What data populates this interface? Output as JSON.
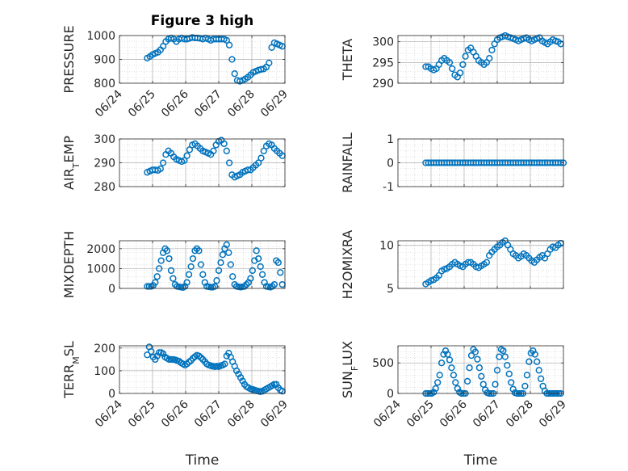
{
  "chart_data": [
    {
      "type": "scatter",
      "title": "Figure 3 high",
      "ylabel": "PRESSURE",
      "ylim": [
        800,
        1000
      ],
      "yticks": [
        "800",
        "900",
        "1000"
      ],
      "xlim": [
        0,
        5
      ],
      "xticks": [
        "06/24",
        "06/25",
        "06/26",
        "06/27",
        "06/28",
        "06/29"
      ],
      "xlabel": "",
      "grid": true,
      "series": [
        {
          "x": [
            0.84,
            0.92,
            1.0,
            1.08,
            1.16,
            1.24,
            1.32,
            1.4,
            1.48,
            1.56,
            1.64,
            1.72,
            1.8,
            1.88,
            1.96,
            2.04,
            2.12,
            2.2,
            2.28,
            2.36,
            2.44,
            2.52,
            2.6,
            2.68,
            2.76,
            2.84,
            2.92,
            3.0,
            3.08,
            3.16,
            3.24,
            3.32,
            3.4,
            3.48,
            3.56,
            3.64,
            3.72,
            3.8,
            3.88,
            3.96,
            4.04,
            4.12,
            4.2,
            4.28,
            4.36,
            4.44,
            4.52,
            4.6,
            4.68,
            4.76,
            4.84,
            4.92
          ],
          "y": [
            905,
            912,
            920,
            925,
            930,
            940,
            955,
            975,
            985,
            990,
            985,
            975,
            985,
            990,
            985,
            985,
            988,
            992,
            990,
            990,
            988,
            985,
            990,
            985,
            980,
            985,
            985,
            985,
            985,
            985,
            980,
            960,
            900,
            840,
            812,
            808,
            812,
            818,
            825,
            835,
            845,
            850,
            855,
            858,
            860,
            868,
            885,
            950,
            970,
            965,
            960,
            955
          ]
        }
      ]
    },
    {
      "type": "scatter",
      "ylabel": "THETA",
      "ylim": [
        290,
        301.5
      ],
      "yticks": [
        "290",
        "295",
        "300"
      ],
      "xlim": [
        0,
        5
      ],
      "grid": true,
      "series": [
        {
          "x": [
            0.84,
            0.92,
            1.0,
            1.08,
            1.16,
            1.24,
            1.32,
            1.4,
            1.48,
            1.56,
            1.64,
            1.72,
            1.8,
            1.88,
            1.96,
            2.04,
            2.12,
            2.2,
            2.28,
            2.36,
            2.44,
            2.52,
            2.6,
            2.68,
            2.76,
            2.84,
            2.92,
            3.0,
            3.08,
            3.16,
            3.24,
            3.32,
            3.4,
            3.48,
            3.56,
            3.64,
            3.72,
            3.8,
            3.88,
            3.96,
            4.04,
            4.12,
            4.2,
            4.28,
            4.36,
            4.44,
            4.52,
            4.6,
            4.68,
            4.76,
            4.84,
            4.92
          ],
          "y": [
            294,
            294,
            293.5,
            293.2,
            293.5,
            294.5,
            295.5,
            296,
            295.5,
            295,
            293.5,
            292,
            291.5,
            292.5,
            294.5,
            296.5,
            298,
            298.5,
            297.5,
            296.5,
            295.5,
            295,
            294.5,
            295,
            296,
            298,
            299.5,
            300.5,
            301,
            301.2,
            301.5,
            301.2,
            301,
            300.8,
            300.5,
            300.2,
            300.5,
            300.8,
            301,
            300.5,
            300.2,
            300.5,
            300.8,
            301,
            300.2,
            299.8,
            299.5,
            300,
            300.5,
            300.2,
            300,
            299.5
          ]
        }
      ]
    },
    {
      "type": "scatter",
      "ylabel": "AIR_TEMP",
      "ylim": [
        280,
        300
      ],
      "yticks": [
        "280",
        "290",
        "300"
      ],
      "xlim": [
        0,
        5
      ],
      "grid": true,
      "series": [
        {
          "x": [
            0.84,
            0.92,
            1.0,
            1.08,
            1.16,
            1.24,
            1.32,
            1.4,
            1.48,
            1.56,
            1.64,
            1.72,
            1.8,
            1.88,
            1.96,
            2.04,
            2.12,
            2.2,
            2.28,
            2.36,
            2.44,
            2.52,
            2.6,
            2.68,
            2.76,
            2.84,
            2.92,
            3.0,
            3.08,
            3.16,
            3.24,
            3.32,
            3.4,
            3.48,
            3.56,
            3.64,
            3.72,
            3.8,
            3.88,
            3.96,
            4.04,
            4.12,
            4.2,
            4.28,
            4.36,
            4.44,
            4.52,
            4.6,
            4.68,
            4.76,
            4.84,
            4.92
          ],
          "y": [
            286,
            286.5,
            287,
            287,
            286.8,
            287.5,
            290,
            293.5,
            295,
            294,
            292.5,
            291.5,
            291,
            290.5,
            291,
            293,
            295.5,
            297.5,
            298,
            297,
            296,
            295,
            294.5,
            294,
            293.5,
            295,
            297.5,
            299,
            299.5,
            298,
            295,
            290,
            285,
            284,
            284.5,
            285,
            286,
            286.5,
            287,
            287,
            288,
            289,
            290,
            292,
            295,
            297,
            298,
            297.5,
            296,
            295,
            294,
            293
          ]
        }
      ]
    },
    {
      "type": "scatter",
      "ylabel": "RAINFALL",
      "ylim": [
        -1,
        1
      ],
      "yticks": [
        "-1",
        "0",
        "1"
      ],
      "xlim": [
        0,
        5
      ],
      "grid": true,
      "series": [
        {
          "x": [
            0.84,
            0.92,
            1.0,
            1.08,
            1.16,
            1.24,
            1.32,
            1.4,
            1.48,
            1.56,
            1.64,
            1.72,
            1.8,
            1.88,
            1.96,
            2.04,
            2.12,
            2.2,
            2.28,
            2.36,
            2.44,
            2.52,
            2.6,
            2.68,
            2.76,
            2.84,
            2.92,
            3.0,
            3.08,
            3.16,
            3.24,
            3.32,
            3.4,
            3.48,
            3.56,
            3.64,
            3.72,
            3.8,
            3.88,
            3.96,
            4.04,
            4.12,
            4.2,
            4.28,
            4.36,
            4.44,
            4.52,
            4.6,
            4.68,
            4.76,
            4.84,
            4.92,
            5.0
          ],
          "y": [
            0,
            0,
            0,
            0,
            0,
            0,
            0,
            0,
            0,
            0,
            0,
            0,
            0,
            0,
            0,
            0,
            0,
            0,
            0,
            0,
            0,
            0,
            0,
            0,
            0,
            0,
            0,
            0,
            0,
            0,
            0,
            0,
            0,
            0,
            0,
            0,
            0,
            0,
            0,
            0,
            0,
            0,
            0,
            0,
            0,
            0,
            0,
            0,
            0,
            0,
            0,
            0,
            0
          ]
        }
      ]
    },
    {
      "type": "scatter",
      "ylabel": "MIXDEPTH",
      "ylim": [
        0,
        2400
      ],
      "yticks": [
        "0",
        "1000",
        "2000"
      ],
      "xlim": [
        0,
        5
      ],
      "grid": true,
      "series": [
        {
          "x": [
            0.84,
            0.9,
            0.96,
            1.02,
            1.08,
            1.14,
            1.2,
            1.26,
            1.32,
            1.38,
            1.44,
            1.5,
            1.56,
            1.62,
            1.68,
            1.74,
            1.8,
            1.86,
            1.92,
            1.98,
            2.04,
            2.1,
            2.16,
            2.22,
            2.28,
            2.34,
            2.4,
            2.46,
            2.52,
            2.58,
            2.64,
            2.7,
            2.76,
            2.82,
            2.88,
            2.94,
            3.0,
            3.06,
            3.12,
            3.18,
            3.24,
            3.3,
            3.36,
            3.42,
            3.48,
            3.54,
            3.6,
            3.66,
            3.72,
            3.78,
            3.84,
            3.9,
            3.96,
            4.02,
            4.08,
            4.14,
            4.2,
            4.26,
            4.32,
            4.38,
            4.44,
            4.5,
            4.56,
            4.62,
            4.68,
            4.74,
            4.8,
            4.86,
            4.92
          ],
          "y": [
            100,
            100,
            100,
            150,
            300,
            600,
            1000,
            1400,
            1800,
            2000,
            1900,
            1500,
            900,
            500,
            200,
            100,
            80,
            60,
            50,
            100,
            300,
            700,
            1100,
            1500,
            1900,
            2000,
            1900,
            1200,
            700,
            300,
            100,
            80,
            60,
            60,
            100,
            400,
            900,
            1300,
            1700,
            2000,
            2200,
            1800,
            1200,
            600,
            200,
            100,
            80,
            60,
            80,
            100,
            200,
            300,
            500,
            900,
            1400,
            1900,
            1500,
            1100,
            700,
            300,
            100,
            80,
            60,
            100,
            200,
            1400,
            1300,
            800,
            200
          ]
        }
      ]
    },
    {
      "type": "scatter",
      "ylabel": "H2OMIXRA",
      "ylim": [
        5,
        10.5
      ],
      "yticks": [
        "5",
        "10"
      ],
      "xlim": [
        0,
        5
      ],
      "grid": true,
      "series": [
        {
          "x": [
            0.84,
            0.92,
            1.0,
            1.08,
            1.16,
            1.24,
            1.32,
            1.4,
            1.48,
            1.56,
            1.64,
            1.72,
            1.8,
            1.88,
            1.96,
            2.04,
            2.12,
            2.2,
            2.28,
            2.36,
            2.44,
            2.52,
            2.6,
            2.68,
            2.76,
            2.84,
            2.92,
            3.0,
            3.08,
            3.16,
            3.24,
            3.32,
            3.4,
            3.48,
            3.56,
            3.64,
            3.72,
            3.8,
            3.88,
            3.96,
            4.04,
            4.12,
            4.2,
            4.28,
            4.36,
            4.44,
            4.52,
            4.6,
            4.68,
            4.76,
            4.84,
            4.92
          ],
          "y": [
            5.5,
            5.7,
            5.9,
            6.0,
            6.2,
            6.5,
            7.0,
            7.2,
            7.3,
            7.5,
            7.8,
            8.0,
            7.8,
            7.6,
            7.5,
            7.8,
            8.0,
            8.0,
            7.8,
            7.5,
            7.4,
            7.6,
            7.8,
            8.0,
            8.8,
            9.2,
            9.5,
            9.8,
            10.0,
            10.3,
            10.5,
            10.0,
            9.5,
            9.0,
            8.8,
            8.5,
            8.7,
            9.0,
            8.8,
            8.5,
            8.2,
            8.0,
            8.3,
            8.6,
            8.8,
            8.5,
            9.0,
            9.5,
            9.8,
            9.7,
            10.0,
            10.2
          ]
        }
      ]
    },
    {
      "type": "scatter",
      "ylabel": "TERR_MSL",
      "ylim": [
        0,
        210
      ],
      "yticks": [
        "0",
        "100",
        "200"
      ],
      "xlim": [
        0,
        5
      ],
      "xticks": [
        "06/24",
        "06/25",
        "06/26",
        "06/27",
        "06/28",
        "06/29"
      ],
      "xlabel": "Time",
      "grid": true,
      "series": [
        {
          "x": [
            0.84,
            0.9,
            0.96,
            1.02,
            1.08,
            1.14,
            1.2,
            1.26,
            1.32,
            1.38,
            1.44,
            1.5,
            1.56,
            1.62,
            1.68,
            1.74,
            1.8,
            1.86,
            1.92,
            1.98,
            2.04,
            2.1,
            2.16,
            2.22,
            2.28,
            2.34,
            2.4,
            2.46,
            2.52,
            2.58,
            2.64,
            2.7,
            2.76,
            2.82,
            2.88,
            2.94,
            3.0,
            3.06,
            3.12,
            3.18,
            3.24,
            3.3,
            3.36,
            3.42,
            3.48,
            3.54,
            3.6,
            3.66,
            3.72,
            3.78,
            3.84,
            3.9,
            3.96,
            4.02,
            4.08,
            4.14,
            4.2,
            4.26,
            4.32,
            4.38,
            4.44,
            4.5,
            4.56,
            4.62,
            4.68,
            4.74,
            4.8,
            4.86,
            4.92
          ],
          "y": [
            170,
            205,
            185,
            160,
            150,
            165,
            180,
            180,
            175,
            160,
            155,
            150,
            150,
            150,
            148,
            145,
            142,
            135,
            130,
            125,
            130,
            138,
            145,
            155,
            162,
            168,
            165,
            158,
            150,
            140,
            130,
            125,
            122,
            120,
            118,
            120,
            118,
            122,
            125,
            130,
            165,
            178,
            160,
            140,
            120,
            100,
            85,
            70,
            55,
            40,
            30,
            25,
            20,
            18,
            15,
            12,
            10,
            8,
            10,
            15,
            20,
            25,
            30,
            35,
            40,
            40,
            25,
            15,
            10
          ]
        }
      ]
    },
    {
      "type": "scatter",
      "ylabel": "SUN_FLUX",
      "ylim": [
        0,
        780
      ],
      "yticks": [
        "0",
        "500"
      ],
      "xlim": [
        0,
        5
      ],
      "xticks": [
        "06/24",
        "06/25",
        "06/26",
        "06/27",
        "06/28",
        "06/29"
      ],
      "xlabel": "Time",
      "grid": true,
      "series": [
        {
          "x": [
            0.84,
            0.9,
            0.96,
            1.02,
            1.08,
            1.14,
            1.2,
            1.26,
            1.32,
            1.38,
            1.44,
            1.5,
            1.56,
            1.62,
            1.68,
            1.74,
            1.8,
            1.86,
            1.92,
            1.98,
            2.04,
            2.1,
            2.16,
            2.22,
            2.28,
            2.34,
            2.4,
            2.46,
            2.52,
            2.58,
            2.64,
            2.7,
            2.76,
            2.82,
            2.88,
            2.94,
            3.0,
            3.06,
            3.12,
            3.18,
            3.24,
            3.3,
            3.36,
            3.42,
            3.48,
            3.54,
            3.6,
            3.66,
            3.72,
            3.78,
            3.84,
            3.9,
            3.96,
            4.02,
            4.08,
            4.14,
            4.2,
            4.26,
            4.32,
            4.38,
            4.44,
            4.5,
            4.56,
            4.62,
            4.68,
            4.74,
            4.8,
            4.86,
            4.92
          ],
          "y": [
            0,
            0,
            0,
            0,
            20,
            80,
            180,
            300,
            500,
            640,
            700,
            640,
            550,
            420,
            300,
            180,
            80,
            20,
            0,
            0,
            0,
            200,
            420,
            620,
            720,
            680,
            560,
            420,
            280,
            150,
            60,
            10,
            0,
            0,
            0,
            150,
            380,
            600,
            720,
            700,
            600,
            460,
            320,
            180,
            70,
            10,
            0,
            0,
            0,
            0,
            120,
            300,
            520,
            660,
            700,
            640,
            520,
            380,
            240,
            120,
            40,
            0,
            0,
            0,
            0,
            0,
            0,
            0,
            0
          ]
        }
      ]
    }
  ]
}
